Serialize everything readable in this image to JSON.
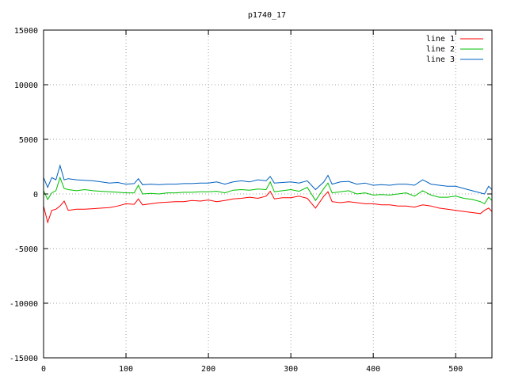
{
  "chart_data": {
    "type": "line",
    "title": "p1740_17",
    "xlabel": "",
    "ylabel": "",
    "xlim": [
      0,
      544
    ],
    "ylim": [
      -15000,
      15000
    ],
    "x_ticks": [
      "0",
      "100",
      "200",
      "300",
      "400",
      "500"
    ],
    "y_ticks": [
      "15000",
      "10000",
      "5000",
      "0",
      "-5000",
      "-10000",
      "-15000"
    ],
    "grid": true,
    "legend_position": "top-right",
    "series": [
      {
        "name": "line 1",
        "color": "#ff0000",
        "x": [
          0,
          5,
          10,
          15,
          20,
          25,
          30,
          40,
          50,
          60,
          70,
          80,
          90,
          100,
          110,
          115,
          120,
          130,
          140,
          150,
          160,
          170,
          180,
          190,
          200,
          210,
          220,
          230,
          240,
          250,
          260,
          270,
          275,
          280,
          290,
          300,
          310,
          320,
          330,
          340,
          345,
          350,
          360,
          370,
          380,
          390,
          400,
          410,
          420,
          430,
          440,
          450,
          460,
          470,
          480,
          490,
          500,
          510,
          520,
          530,
          535,
          540,
          544
        ],
        "y": [
          -1100,
          -2600,
          -1500,
          -1400,
          -1100,
          -650,
          -1500,
          -1400,
          -1400,
          -1350,
          -1300,
          -1250,
          -1100,
          -900,
          -950,
          -450,
          -1000,
          -900,
          -800,
          -750,
          -700,
          -700,
          -600,
          -650,
          -550,
          -700,
          -600,
          -450,
          -400,
          -300,
          -400,
          -200,
          250,
          -450,
          -350,
          -350,
          -200,
          -400,
          -1300,
          -200,
          200,
          -700,
          -800,
          -700,
          -800,
          -900,
          -900,
          -1000,
          -1000,
          -1100,
          -1100,
          -1200,
          -1000,
          -1100,
          -1300,
          -1400,
          -1500,
          -1600,
          -1700,
          -1800,
          -1500,
          -1300,
          -1600
        ]
      },
      {
        "name": "line 2",
        "color": "#00c000",
        "x": [
          0,
          5,
          10,
          15,
          20,
          25,
          30,
          40,
          50,
          60,
          70,
          80,
          90,
          100,
          110,
          115,
          120,
          130,
          140,
          150,
          160,
          170,
          180,
          190,
          200,
          210,
          220,
          230,
          240,
          250,
          260,
          270,
          275,
          280,
          290,
          300,
          310,
          320,
          330,
          340,
          345,
          350,
          360,
          370,
          380,
          390,
          400,
          410,
          420,
          430,
          440,
          450,
          460,
          470,
          480,
          490,
          500,
          510,
          520,
          530,
          535,
          540,
          544
        ],
        "y": [
          300,
          -500,
          100,
          300,
          1500,
          500,
          400,
          300,
          400,
          300,
          250,
          200,
          150,
          100,
          100,
          800,
          0,
          50,
          0,
          100,
          100,
          150,
          150,
          200,
          200,
          250,
          100,
          350,
          400,
          350,
          450,
          400,
          1100,
          200,
          300,
          400,
          250,
          600,
          -600,
          500,
          1000,
          100,
          200,
          300,
          0,
          100,
          -100,
          -50,
          -100,
          0,
          100,
          -200,
          300,
          -100,
          -300,
          -300,
          -200,
          -400,
          -500,
          -700,
          -900,
          -300,
          -600
        ]
      },
      {
        "name": "line 3",
        "color": "#0060c0",
        "x": [
          0,
          5,
          10,
          15,
          20,
          25,
          30,
          40,
          50,
          60,
          70,
          80,
          90,
          100,
          110,
          115,
          120,
          130,
          140,
          150,
          160,
          170,
          180,
          190,
          200,
          210,
          220,
          230,
          240,
          250,
          260,
          270,
          275,
          280,
          290,
          300,
          310,
          320,
          330,
          340,
          345,
          350,
          360,
          370,
          380,
          390,
          400,
          410,
          420,
          430,
          440,
          450,
          460,
          470,
          480,
          490,
          500,
          510,
          520,
          530,
          535,
          540,
          544
        ],
        "y": [
          1500,
          600,
          1500,
          1300,
          2600,
          1300,
          1400,
          1300,
          1250,
          1200,
          1100,
          1000,
          1050,
          900,
          950,
          1400,
          850,
          900,
          850,
          900,
          900,
          950,
          950,
          1000,
          1000,
          1100,
          900,
          1100,
          1200,
          1100,
          1300,
          1200,
          1600,
          1000,
          1050,
          1100,
          1000,
          1200,
          400,
          1100,
          1700,
          900,
          1100,
          1150,
          900,
          1000,
          800,
          850,
          800,
          900,
          900,
          800,
          1300,
          900,
          800,
          700,
          700,
          500,
          300,
          100,
          0,
          700,
          400
        ]
      }
    ]
  }
}
